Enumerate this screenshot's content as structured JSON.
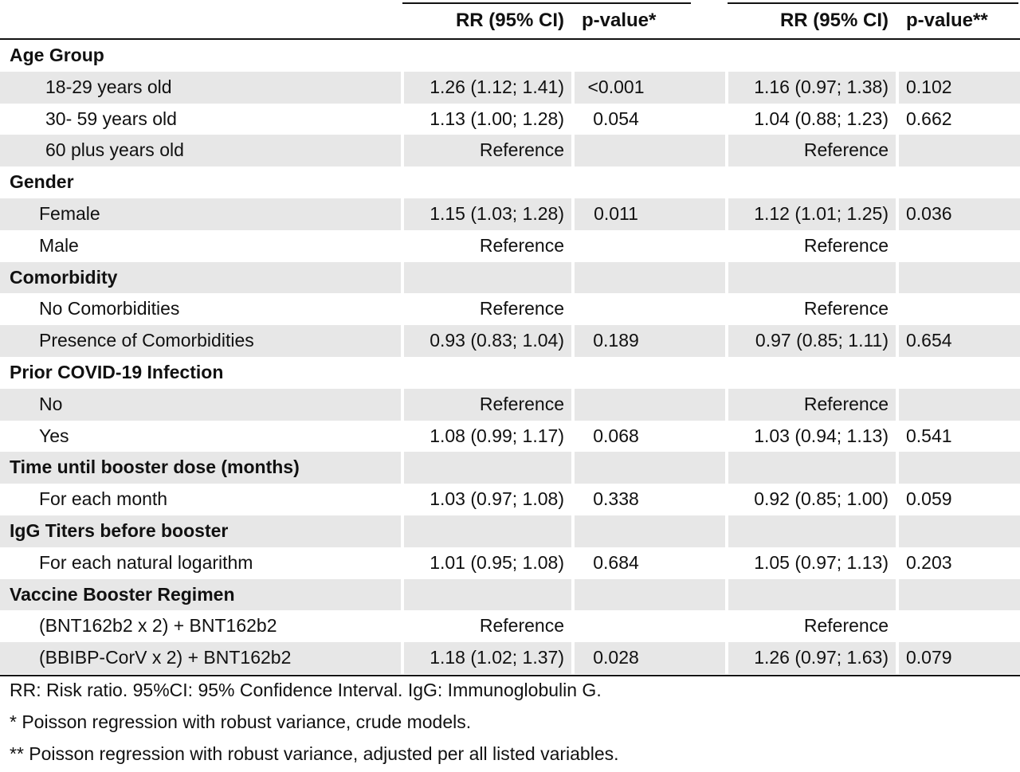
{
  "header": {
    "col_rr_crude": "RR (95% CI)",
    "col_p_crude": "p-value*",
    "col_rr_adjusted": "RR (95% CI)",
    "col_p_adjusted": "p-value**"
  },
  "rows": [
    {
      "type": "section",
      "label": "Age Group",
      "rr1": "",
      "p1": "",
      "rr2": "",
      "p2": ""
    },
    {
      "type": "item",
      "indent": 2,
      "label": "18-29 years old",
      "rr1": "1.26 (1.12; 1.41)",
      "p1": "<0.001",
      "rr2": "1.16 (0.97; 1.38)",
      "p2": "0.102"
    },
    {
      "type": "item",
      "indent": 2,
      "label": "30- 59 years old",
      "rr1": "1.13 (1.00; 1.28)",
      "p1": "0.054",
      "rr2": "1.04 (0.88; 1.23)",
      "p2": "0.662"
    },
    {
      "type": "item",
      "indent": 2,
      "label": "60 plus years old",
      "rr1": "Reference",
      "p1": "",
      "rr2": "Reference",
      "p2": ""
    },
    {
      "type": "section",
      "label": "Gender",
      "rr1": "",
      "p1": "",
      "rr2": "",
      "p2": ""
    },
    {
      "type": "item",
      "indent": 1,
      "label": "Female",
      "rr1": "1.15 (1.03; 1.28)",
      "p1": "0.011",
      "rr2": "1.12 (1.01; 1.25)",
      "p2": "0.036"
    },
    {
      "type": "item",
      "indent": 1,
      "label": "Male",
      "rr1": "Reference",
      "p1": "",
      "rr2": "Reference",
      "p2": ""
    },
    {
      "type": "section",
      "label": "Comorbidity",
      "rr1": "",
      "p1": "",
      "rr2": "",
      "p2": ""
    },
    {
      "type": "item",
      "indent": 1,
      "label": "No Comorbidities",
      "rr1": "Reference",
      "p1": "",
      "rr2": "Reference",
      "p2": ""
    },
    {
      "type": "item",
      "indent": 1,
      "label": "Presence of Comorbidities",
      "rr1": "0.93 (0.83; 1.04)",
      "p1": "0.189",
      "rr2": "0.97 (0.85; 1.11)",
      "p2": "0.654"
    },
    {
      "type": "section",
      "label": "Prior COVID-19 Infection",
      "rr1": "",
      "p1": "",
      "rr2": "",
      "p2": ""
    },
    {
      "type": "item",
      "indent": 1,
      "label": "No",
      "rr1": "Reference",
      "p1": "",
      "rr2": "Reference",
      "p2": ""
    },
    {
      "type": "item",
      "indent": 1,
      "label": "Yes",
      "rr1": "1.08 (0.99; 1.17)",
      "p1": "0.068",
      "rr2": "1.03 (0.94; 1.13)",
      "p2": "0.541"
    },
    {
      "type": "section",
      "label": "Time until booster dose (months)",
      "rr1": "",
      "p1": "",
      "rr2": "",
      "p2": ""
    },
    {
      "type": "item",
      "indent": 1,
      "label": "For each month",
      "rr1": "1.03 (0.97; 1.08)",
      "p1": "0.338",
      "rr2": "0.92 (0.85; 1.00)",
      "p2": "0.059"
    },
    {
      "type": "section",
      "label": "IgG Titers before booster",
      "rr1": "",
      "p1": "",
      "rr2": "",
      "p2": ""
    },
    {
      "type": "item",
      "indent": 1,
      "label": "For each natural logarithm",
      "rr1": "1.01 (0.95; 1.08)",
      "p1": "0.684",
      "rr2": "1.05 (0.97; 1.13)",
      "p2": "0.203"
    },
    {
      "type": "section",
      "label": "Vaccine Booster Regimen",
      "rr1": "",
      "p1": "",
      "rr2": "",
      "p2": ""
    },
    {
      "type": "item",
      "indent": 1,
      "label": "(BNT162b2 x 2) + BNT162b2",
      "rr1": "Reference",
      "p1": "",
      "rr2": "Reference",
      "p2": ""
    },
    {
      "type": "item",
      "indent": 1,
      "label": "(BBIBP-CorV x 2) + BNT162b2",
      "rr1": "1.18 (1.02; 1.37)",
      "p1": "0.028",
      "rr2": "1.26 (0.97; 1.63)",
      "p2": "0.079"
    }
  ],
  "footnotes": [
    "RR: Risk ratio. 95%CI: 95% Confidence Interval. IgG: Immunoglobulin G.",
    "* Poisson regression with robust variance, crude models.",
    "** Poisson regression with robust variance, adjusted per all listed variables."
  ],
  "colors": {
    "shade": "#e7e7e7",
    "rule": "#111111",
    "text": "#111111"
  }
}
